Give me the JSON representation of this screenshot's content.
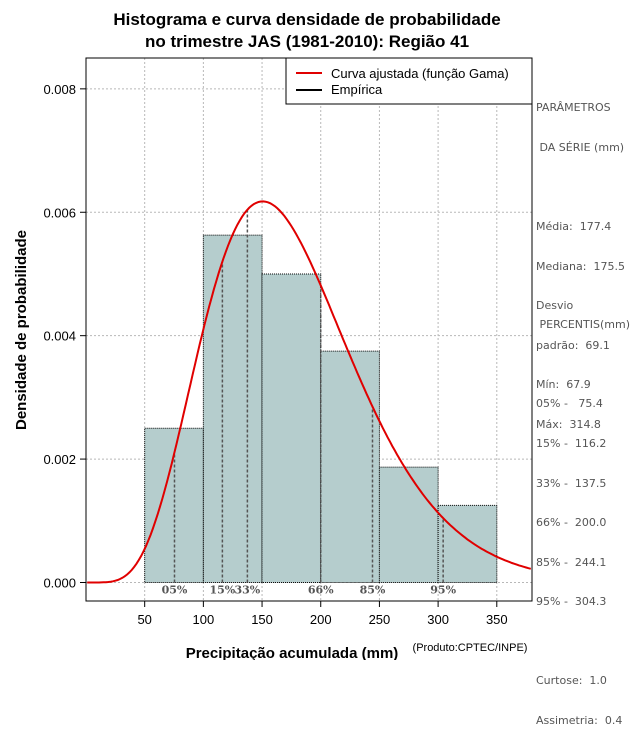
{
  "chart_data": {
    "type": "bar",
    "title": [
      "Histograma e curva densidade de probabilidade",
      "no trimestre JAS (1981-2010): Região 41"
    ],
    "xlabel": "Precipitação acumulada (mm)",
    "ylabel": "Densidade de probabilidade",
    "credit": "(Produto:CPTEC/INPE)",
    "xlim": [
      0,
      380
    ],
    "ylim": [
      -0.0003,
      0.0085
    ],
    "x_ticks": [
      50,
      100,
      150,
      200,
      250,
      300,
      350
    ],
    "y_ticks": [
      0.0,
      0.002,
      0.004,
      0.006,
      0.008
    ],
    "y_tick_labels": [
      "0.000",
      "0.002",
      "0.004",
      "0.006",
      "0.008"
    ],
    "bin_edges": [
      50,
      100,
      150,
      200,
      250,
      300,
      350
    ],
    "values": [
      0.0025,
      0.00563,
      0.005,
      0.00375,
      0.00187,
      0.00125
    ],
    "bar_color": "#b5cdcd",
    "curve": {
      "name": "Curva ajustada (função Gama)",
      "mean": 177.4,
      "sd": 69.1,
      "color": "#e00000"
    },
    "empirical": {
      "name": "Empírica",
      "color": "#000000"
    },
    "percentile_lines": [
      {
        "label": "05%",
        "x": 75.4
      },
      {
        "label": "15%",
        "x": 116.2
      },
      {
        "label": "33%",
        "x": 137.5
      },
      {
        "label": "66%",
        "x": 200.0
      },
      {
        "label": "85%",
        "x": 244.1
      },
      {
        "label": "95%",
        "x": 304.3
      }
    ],
    "legend_position": "top-right",
    "grid": true
  },
  "side_panel": {
    "params_title": [
      "PARÂMETROS",
      " DA SÉRIE (mm)"
    ],
    "params": [
      "Média:  177.4",
      "Mediana:  175.5",
      "Desvio",
      "padrão:  69.1",
      "Mín:  67.9",
      "Máx:  314.8"
    ],
    "pct_title": " PERCENTIS(mm)",
    "pcts": [
      "05% -   75.4",
      "15% -  116.2",
      "33% -  137.5",
      "66% -  200.0",
      "85% -  244.1",
      "95% -  304.3"
    ],
    "stats": [
      "Curtose:  1.0",
      "Assimetria:  0.4"
    ]
  }
}
